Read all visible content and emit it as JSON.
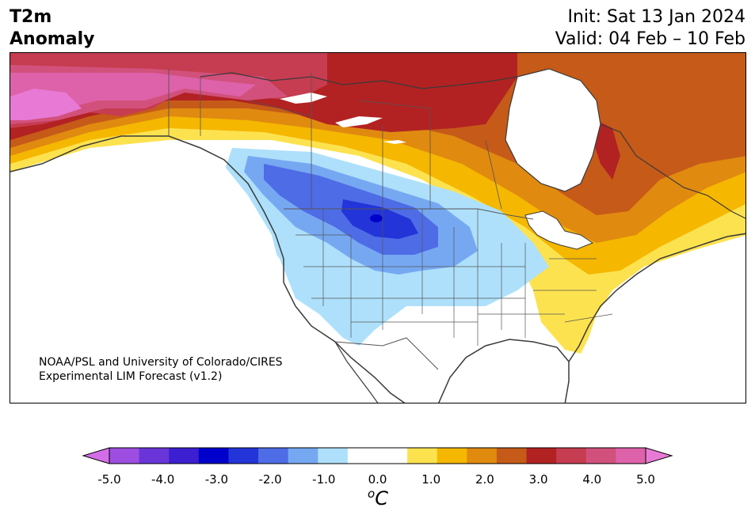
{
  "header": {
    "variable": "T2m",
    "subtitle": "Anomaly",
    "init": "Init: Sat 13 Jan 2024",
    "valid": "Valid: 04 Feb – 10 Feb"
  },
  "credit": {
    "line1": "NOAA/PSL and University of Colorado/CIRES",
    "line2": "Experimental LIM Forecast (v1.2)"
  },
  "colorbar": {
    "ticks": [
      "-5.0",
      "-4.0",
      "-3.0",
      "-2.0",
      "-1.0",
      "0.0",
      "1.0",
      "2.0",
      "3.0",
      "4.0",
      "5.0"
    ],
    "unit_sup": "o",
    "unit": "C",
    "colors": [
      "#d46ee8",
      "#9d4ee0",
      "#6a35d8",
      "#3b1fd0",
      "#0000cc",
      "#2334d8",
      "#4e6ce6",
      "#76a8f2",
      "#aee0fb",
      "#ffffff",
      "#ffffff",
      "#fde24f",
      "#f5b700",
      "#e08a10",
      "#c65a18",
      "#b22222",
      "#c63c50",
      "#d2517c",
      "#de62aa",
      "#e87ad6"
    ]
  },
  "map_colors": {
    "land_neutral": "#ffffff",
    "coast": "#3a3a3a",
    "border": "#555555"
  }
}
